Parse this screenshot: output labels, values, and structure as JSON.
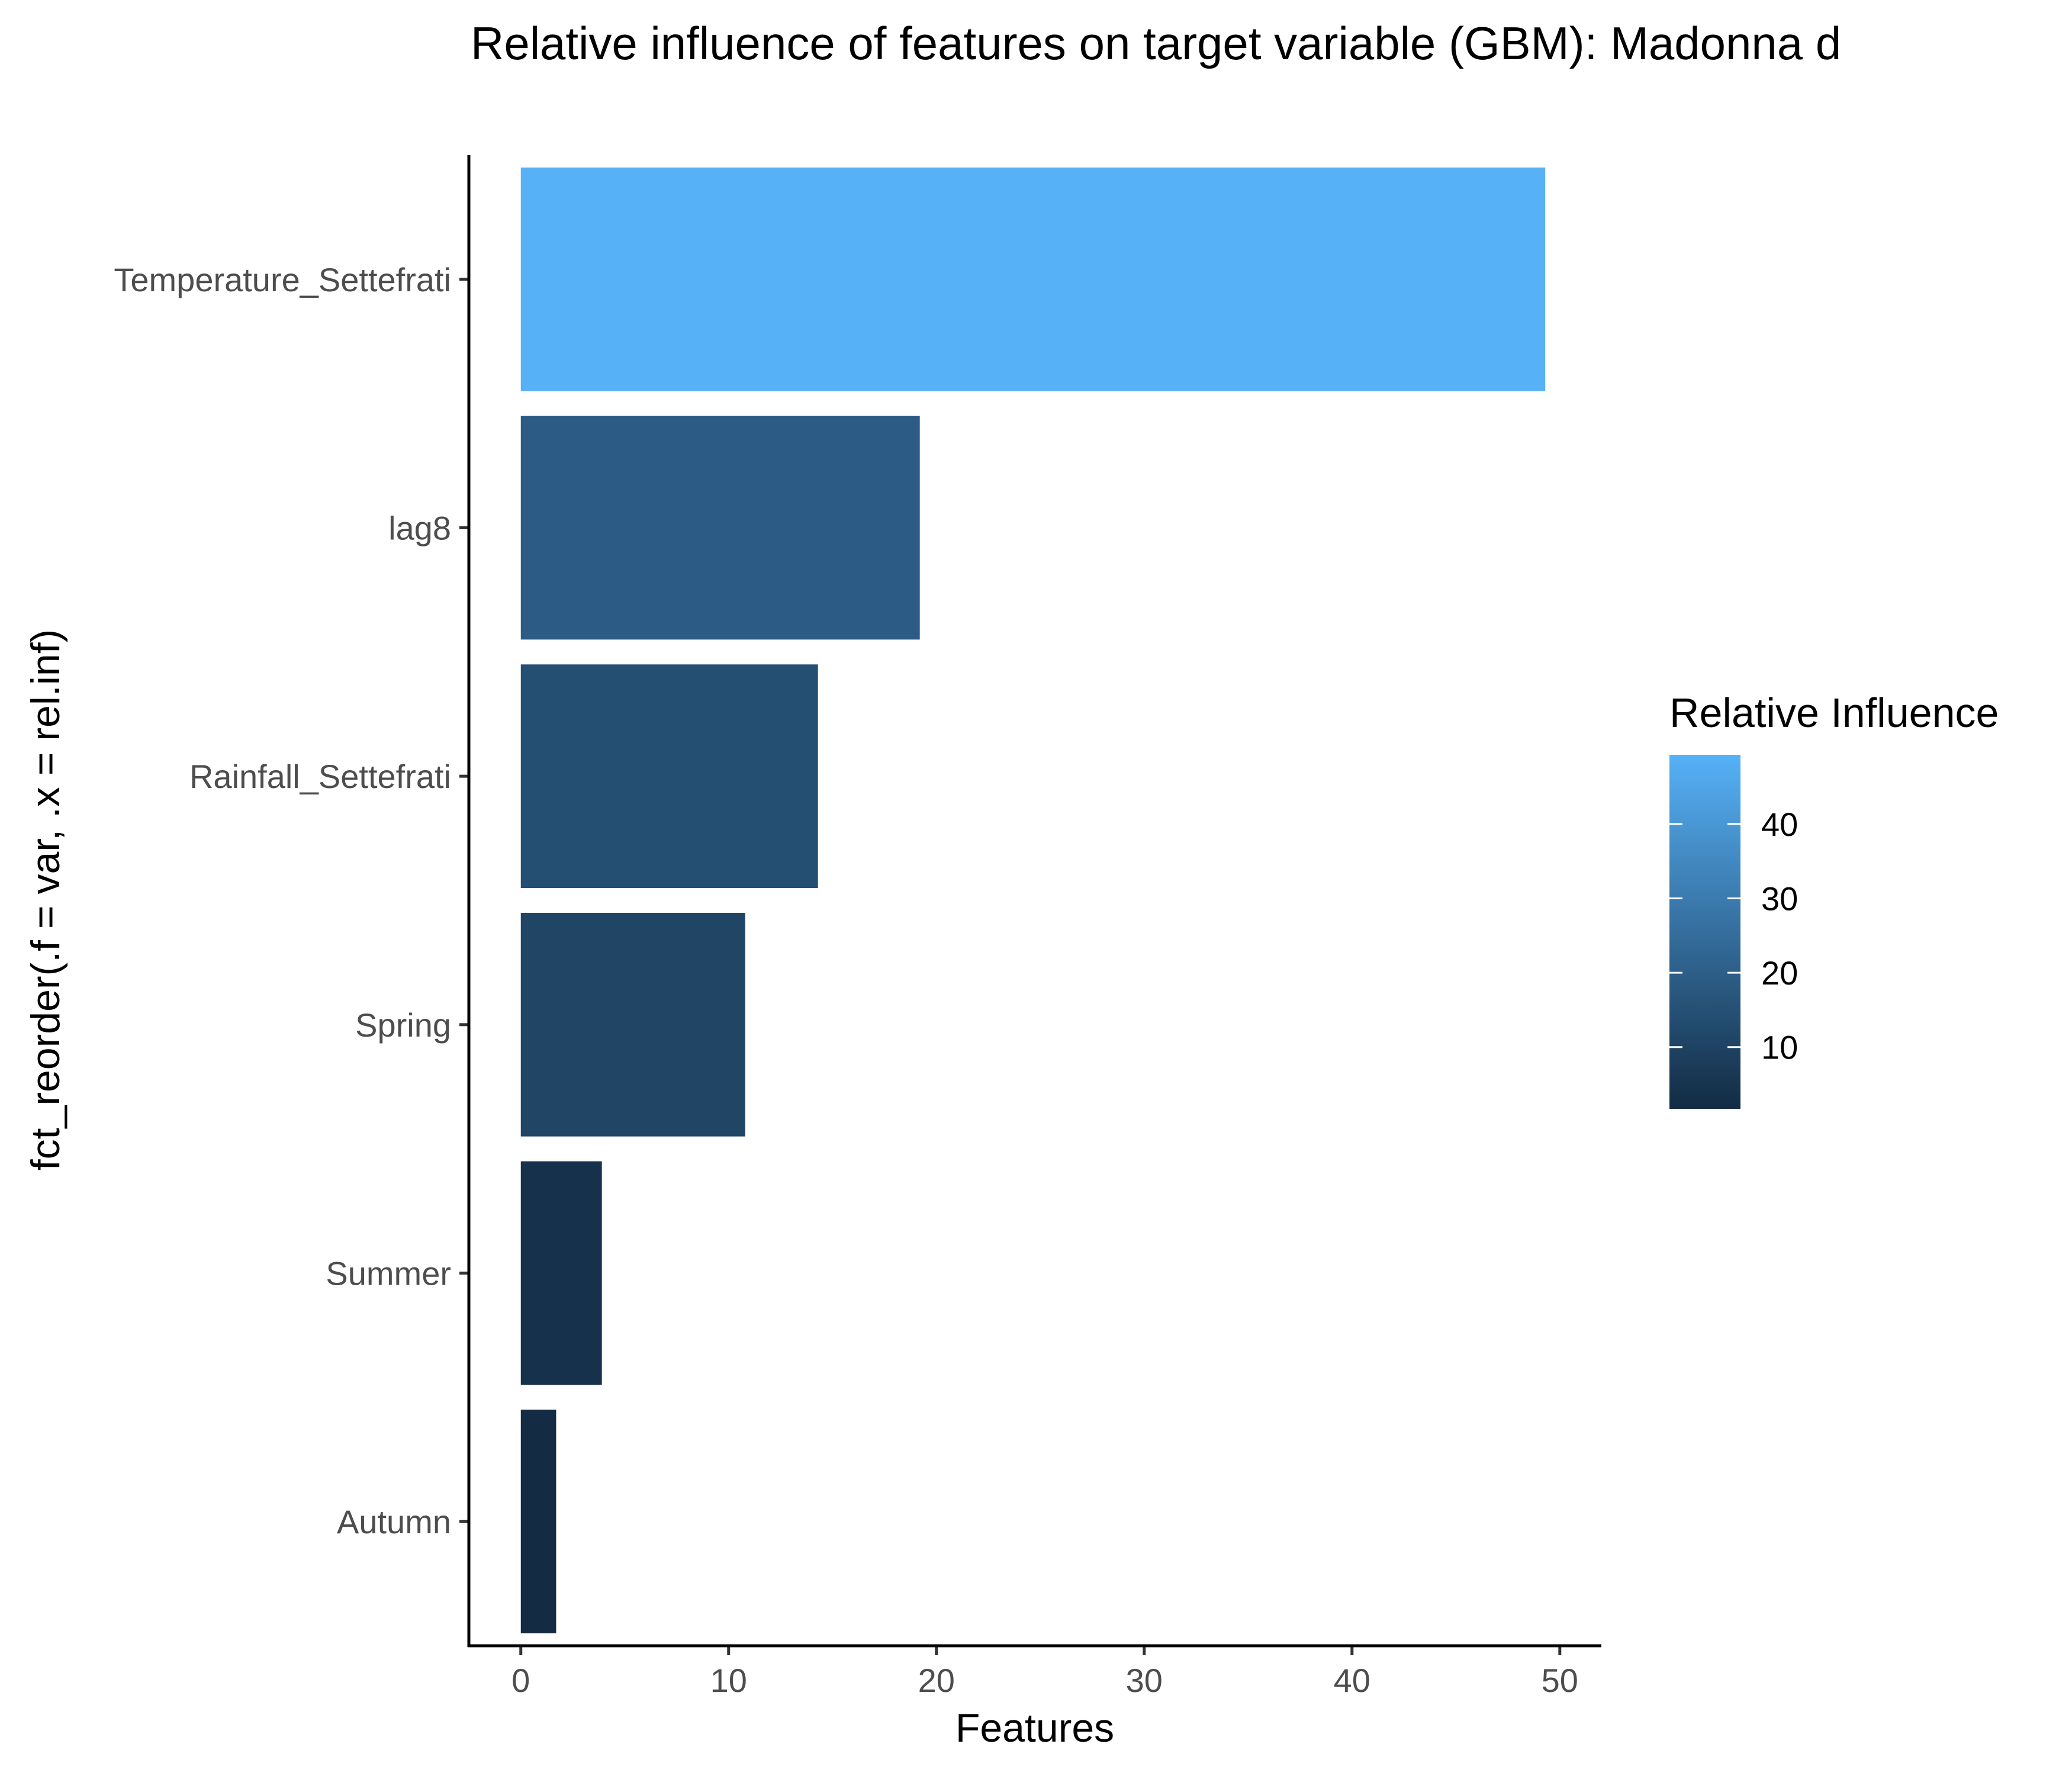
{
  "chart_data": {
    "type": "bar",
    "orientation": "horizontal",
    "title": "Relative influence of features on target variable (GBM): Madonna d",
    "xlabel": "Features",
    "ylabel": "fct_reorder(.f = var, .x = rel.inf)",
    "categories": [
      "Temperature_Settefrati",
      "lag8",
      "Rainfall_Settefrati",
      "Spring",
      "Summer",
      "Autumn"
    ],
    "values": [
      49.3,
      19.2,
      14.3,
      10.8,
      3.9,
      1.7
    ],
    "xlim": [
      -2.5,
      52
    ],
    "xticks": [
      0,
      10,
      20,
      30,
      40,
      50
    ],
    "grid": false,
    "legend": {
      "title": "Relative Influence",
      "placement": "right",
      "type": "colorbar",
      "range": [
        1.7,
        49.3
      ],
      "ticks": [
        10,
        20,
        30,
        40
      ],
      "low_color": "#132B43",
      "high_color": "#56B1F7"
    }
  }
}
